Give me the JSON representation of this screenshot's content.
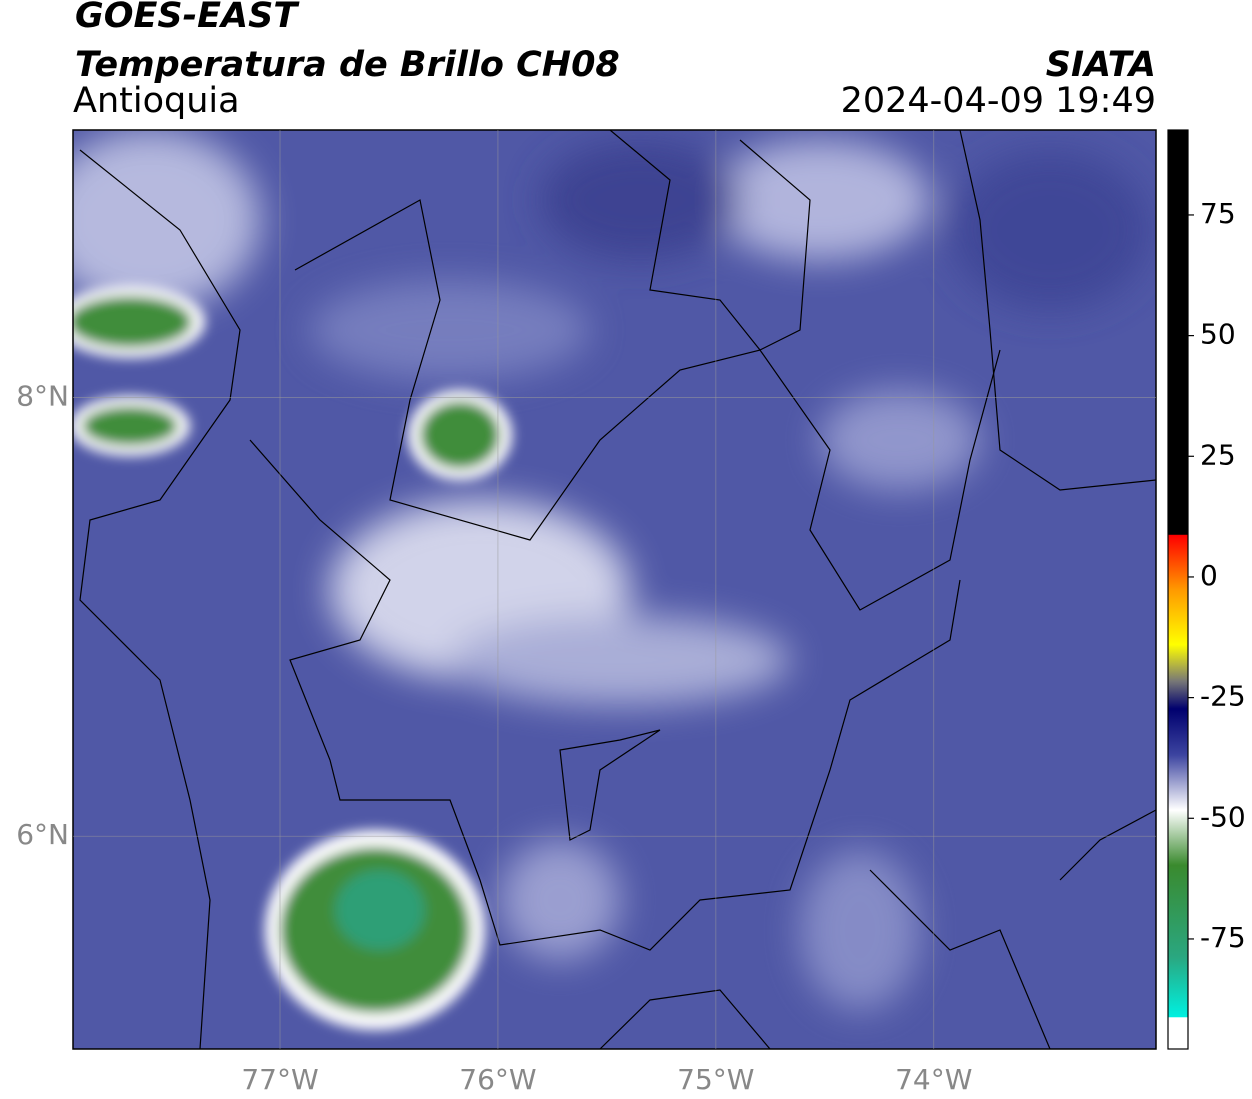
{
  "header": {
    "title": "GOES-EAST",
    "subtitle": "Temperatura de Brillo CH08",
    "region": "Antioquia",
    "source": "SIATA",
    "datetime": "2024-04-09 19:49"
  },
  "map": {
    "xlim": [
      -77.95,
      -72.98
    ],
    "ylim": [
      5.03,
      9.22
    ],
    "xticks": [
      {
        "value": -77,
        "label": "77°W"
      },
      {
        "value": -76,
        "label": "76°W"
      },
      {
        "value": -75,
        "label": "75°W"
      },
      {
        "value": -74,
        "label": "74°W"
      }
    ],
    "yticks": [
      {
        "value": 6,
        "label": "6°N"
      },
      {
        "value": 8,
        "label": "8°N"
      }
    ],
    "grid": true
  },
  "colorbar": {
    "lim": [
      -97.8,
      92.6
    ],
    "ticks": [
      -75,
      -50,
      -25,
      0,
      25,
      50,
      75
    ]
  }
}
